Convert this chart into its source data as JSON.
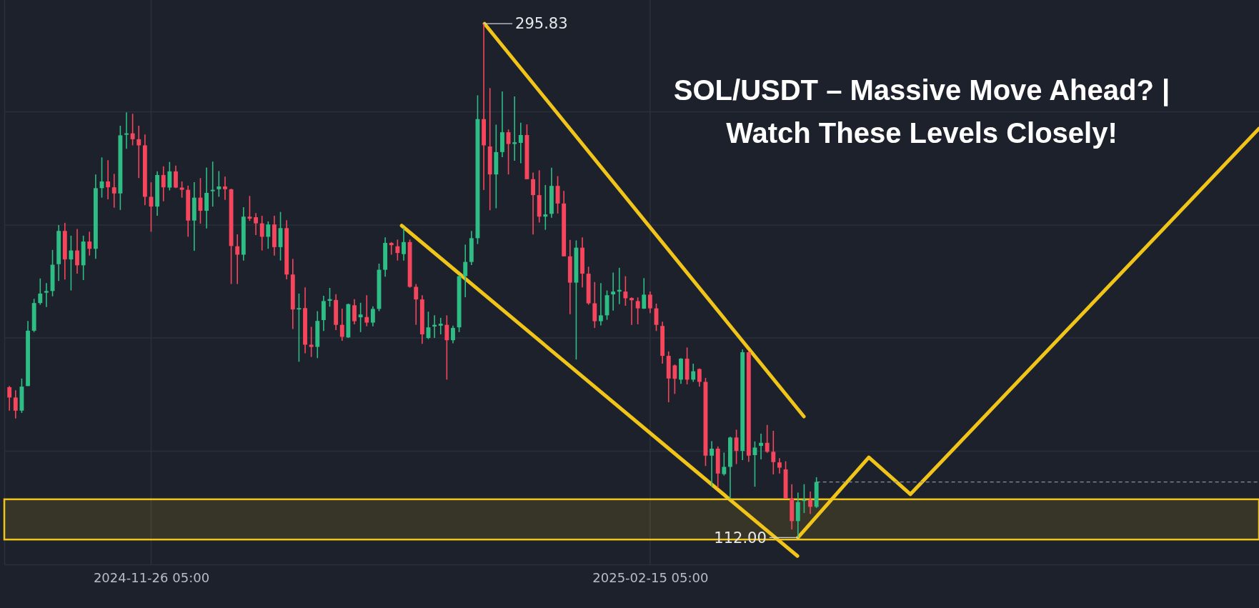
{
  "chart_data": {
    "type": "candlestick",
    "title": "SOL/USDT – Massive Move Ahead? | Watch These Levels Closely!",
    "x": [
      "2024-11-03T05:00",
      "2024-11-04T05:00",
      "2024-11-05T05:00",
      "2024-11-06T05:00",
      "2024-11-07T05:00",
      "2024-11-08T05:00",
      "2024-11-09T05:00",
      "2024-11-10T05:00",
      "2024-11-11T05:00",
      "2024-11-12T05:00",
      "2024-11-13T05:00",
      "2024-11-14T05:00",
      "2024-11-15T05:00",
      "2024-11-16T05:00",
      "2024-11-17T05:00",
      "2024-11-18T05:00",
      "2024-11-19T05:00",
      "2024-11-20T05:00",
      "2024-11-21T05:00",
      "2024-11-22T05:00",
      "2024-11-23T05:00",
      "2024-11-24T05:00",
      "2024-11-25T05:00",
      "2024-11-26T05:00",
      "2024-11-27T05:00",
      "2024-11-28T05:00",
      "2024-11-29T05:00",
      "2024-11-30T05:00",
      "2024-12-01T05:00",
      "2024-12-02T05:00",
      "2024-12-03T05:00",
      "2024-12-04T05:00",
      "2024-12-05T05:00",
      "2024-12-06T05:00",
      "2024-12-07T05:00",
      "2024-12-08T05:00",
      "2024-12-09T05:00",
      "2024-12-10T05:00",
      "2024-12-11T05:00",
      "2024-12-12T05:00",
      "2024-12-13T05:00",
      "2024-12-14T05:00",
      "2024-12-15T05:00",
      "2024-12-16T05:00",
      "2024-12-17T05:00",
      "2024-12-18T05:00",
      "2024-12-19T05:00",
      "2024-12-20T05:00",
      "2024-12-21T05:00",
      "2024-12-22T05:00",
      "2024-12-23T05:00",
      "2024-12-24T05:00",
      "2024-12-25T05:00",
      "2024-12-26T05:00",
      "2024-12-27T05:00",
      "2024-12-28T05:00",
      "2024-12-29T05:00",
      "2024-12-30T05:00",
      "2024-12-31T05:00",
      "2025-01-01T05:00",
      "2025-01-02T05:00",
      "2025-01-03T05:00",
      "2025-01-04T05:00",
      "2025-01-05T05:00",
      "2025-01-06T05:00",
      "2025-01-07T05:00",
      "2025-01-08T05:00",
      "2025-01-09T05:00",
      "2025-01-10T05:00",
      "2025-01-11T05:00",
      "2025-01-12T05:00",
      "2025-01-13T05:00",
      "2025-01-14T05:00",
      "2025-01-15T05:00",
      "2025-01-16T05:00",
      "2025-01-17T05:00",
      "2025-01-18T05:00",
      "2025-01-19T05:00",
      "2025-01-20T05:00",
      "2025-01-21T05:00",
      "2025-01-22T05:00",
      "2025-01-23T05:00",
      "2025-01-24T05:00",
      "2025-01-25T05:00",
      "2025-01-26T05:00",
      "2025-01-27T05:00",
      "2025-01-28T05:00",
      "2025-01-29T05:00",
      "2025-01-30T05:00",
      "2025-01-31T05:00",
      "2025-02-01T05:00",
      "2025-02-02T05:00",
      "2025-02-03T05:00",
      "2025-02-04T05:00",
      "2025-02-05T05:00",
      "2025-02-06T05:00",
      "2025-02-07T05:00",
      "2025-02-08T05:00",
      "2025-02-09T05:00",
      "2025-02-10T05:00",
      "2025-02-11T05:00",
      "2025-02-12T05:00",
      "2025-02-13T05:00",
      "2025-02-14T05:00",
      "2025-02-15T05:00",
      "2025-02-16T05:00",
      "2025-02-17T05:00",
      "2025-02-18T05:00",
      "2025-02-19T05:00",
      "2025-02-20T05:00",
      "2025-02-21T05:00",
      "2025-02-22T05:00",
      "2025-02-23T05:00",
      "2025-02-24T05:00",
      "2025-02-25T05:00",
      "2025-02-26T05:00",
      "2025-02-27T05:00",
      "2025-02-28T05:00",
      "2025-03-01T05:00",
      "2025-03-02T05:00",
      "2025-03-03T05:00",
      "2025-03-04T05:00",
      "2025-03-05T05:00",
      "2025-03-06T05:00",
      "2025-03-07T05:00",
      "2025-03-08T05:00",
      "2025-03-09T05:00",
      "2025-03-10T05:00",
      "2025-03-11T05:00",
      "2025-03-12T05:00",
      "2025-03-13T05:00",
      "2025-03-14T05:00"
    ],
    "ohlc": [
      [
        165.8,
        166.2,
        157.4,
        162.1
      ],
      [
        162.1,
        164.7,
        154.6,
        157.4
      ],
      [
        157.4,
        168.9,
        156.6,
        166.0
      ],
      [
        166.2,
        189.5,
        166.2,
        186.0
      ],
      [
        186.0,
        197.4,
        185.5,
        195.9
      ],
      [
        195.9,
        204.7,
        195.3,
        199.3
      ],
      [
        199.6,
        203.0,
        194.5,
        200.2
      ],
      [
        200.2,
        214.9,
        198.3,
        209.6
      ],
      [
        209.8,
        223.8,
        203.8,
        221.7
      ],
      [
        221.7,
        224.6,
        204.3,
        211.5
      ],
      [
        211.5,
        220.0,
        200.4,
        214.7
      ],
      [
        214.7,
        222.4,
        206.4,
        209.4
      ],
      [
        209.4,
        220.0,
        204.1,
        217.9
      ],
      [
        217.9,
        221.4,
        212.9,
        215.3
      ],
      [
        215.3,
        241.9,
        211.7,
        237.0
      ],
      [
        237.0,
        248.0,
        233.6,
        239.4
      ],
      [
        239.4,
        247.0,
        233.0,
        237.3
      ],
      [
        237.3,
        242.1,
        230.0,
        235.1
      ],
      [
        235.1,
        259.3,
        229.2,
        255.9
      ],
      [
        256.1,
        264.1,
        251.1,
        256.6
      ],
      [
        256.6,
        263.6,
        252.3,
        254.5
      ],
      [
        254.5,
        259.3,
        240.6,
        252.3
      ],
      [
        252.3,
        256.2,
        230.9,
        233.9
      ],
      [
        233.9,
        239.1,
        221.4,
        230.4
      ],
      [
        230.4,
        243.0,
        227.1,
        241.7
      ],
      [
        241.7,
        244.8,
        232.3,
        237.3
      ],
      [
        237.2,
        246.4,
        236.2,
        243.0
      ],
      [
        243.0,
        245.1,
        237.0,
        237.2
      ],
      [
        237.2,
        239.4,
        233.6,
        236.4
      ],
      [
        236.4,
        237.9,
        219.6,
        225.4
      ],
      [
        225.4,
        239.1,
        214.6,
        233.6
      ],
      [
        233.6,
        240.6,
        224.3,
        228.9
      ],
      [
        228.9,
        244.4,
        222.6,
        235.3
      ],
      [
        235.9,
        246.5,
        230.4,
        236.4
      ],
      [
        236.6,
        243.1,
        233.9,
        237.6
      ],
      [
        237.6,
        241.1,
        232.8,
        236.6
      ],
      [
        236.6,
        236.8,
        202.7,
        216.3
      ],
      [
        216.2,
        220.5,
        202.7,
        213.2
      ],
      [
        213.2,
        230.2,
        211.1,
        226.8
      ],
      [
        226.8,
        234.2,
        225.3,
        226.1
      ],
      [
        226.6,
        228.1,
        220.2,
        224.4
      ],
      [
        224.4,
        227.1,
        214.7,
        219.6
      ],
      [
        219.6,
        225.1,
        215.3,
        224.0
      ],
      [
        224.0,
        227.1,
        212.9,
        215.9
      ],
      [
        215.9,
        228.5,
        211.1,
        222.7
      ],
      [
        222.7,
        225.5,
        204.4,
        206.1
      ],
      [
        206.1,
        211.7,
        186.6,
        193.6
      ],
      [
        193.6,
        199.3,
        174.9,
        194.1
      ],
      [
        194.1,
        201.5,
        177.9,
        181.0
      ],
      [
        181.0,
        187.4,
        176.6,
        180.2
      ],
      [
        180.2,
        193.0,
        176.2,
        189.5
      ],
      [
        189.8,
        198.5,
        185.9,
        196.6
      ],
      [
        196.7,
        201.3,
        194.6,
        197.3
      ],
      [
        197.0,
        199.1,
        186.2,
        188.1
      ],
      [
        188.1,
        193.9,
        182.4,
        183.8
      ],
      [
        183.6,
        195.7,
        183.4,
        195.5
      ],
      [
        195.1,
        197.3,
        188.3,
        189.4
      ],
      [
        190.8,
        196.0,
        185.5,
        191.8
      ],
      [
        190.9,
        198.7,
        187.6,
        188.9
      ],
      [
        188.9,
        194.7,
        187.6,
        193.8
      ],
      [
        193.8,
        210.0,
        193.0,
        207.8
      ],
      [
        207.8,
        219.4,
        205.3,
        217.4
      ],
      [
        217.4,
        217.7,
        213.2,
        216.6
      ],
      [
        216.2,
        218.6,
        211.1,
        213.8
      ],
      [
        213.4,
        222.8,
        211.1,
        217.7
      ],
      [
        217.7,
        218.6,
        201.4,
        201.7
      ],
      [
        201.7,
        202.7,
        188.1,
        197.2
      ],
      [
        197.2,
        198.7,
        181.3,
        184.7
      ],
      [
        183.4,
        192.8,
        183.0,
        187.2
      ],
      [
        187.5,
        191.5,
        183.4,
        188.1
      ],
      [
        187.8,
        190.6,
        184.7,
        188.5
      ],
      [
        188.1,
        191.5,
        168.5,
        182.6
      ],
      [
        182.6,
        187.8,
        181.5,
        187.0
      ],
      [
        187.2,
        205.9,
        185.5,
        205.5
      ],
      [
        205.5,
        216.8,
        198.0,
        210.6
      ],
      [
        210.6,
        221.7,
        209.5,
        219.1
      ],
      [
        219.1,
        270.2,
        217.0,
        261.7
      ],
      [
        261.7,
        295.83,
        236.3,
        252.3
      ],
      [
        251.9,
        272.8,
        229.1,
        241.9
      ],
      [
        241.9,
        259.7,
        229.8,
        249.9
      ],
      [
        249.9,
        271.6,
        248.1,
        257.0
      ],
      [
        257.0,
        258.0,
        241.9,
        252.8
      ],
      [
        252.8,
        269.8,
        246.8,
        253.4
      ],
      [
        253.2,
        260.4,
        245.9,
        256.0
      ],
      [
        256.0,
        259.8,
        240.2,
        240.2
      ],
      [
        240.2,
        242.6,
        220.4,
        234.5
      ],
      [
        234.5,
        243.4,
        224.7,
        226.8
      ],
      [
        226.8,
        238.1,
        222.1,
        227.6
      ],
      [
        227.8,
        244.3,
        226.4,
        237.8
      ],
      [
        237.8,
        241.3,
        227.9,
        231.5
      ],
      [
        231.5,
        236.0,
        212.6,
        212.6
      ],
      [
        212.6,
        218.5,
        191.9,
        203.2
      ],
      [
        203.2,
        218.3,
        175.7,
        215.7
      ],
      [
        215.7,
        219.4,
        201.5,
        206.4
      ],
      [
        206.4,
        208.9,
        195.3,
        195.8
      ],
      [
        195.8,
        203.4,
        187.0,
        189.4
      ],
      [
        189.4,
        203.0,
        187.9,
        191.5
      ],
      [
        191.5,
        200.4,
        189.9,
        198.7
      ],
      [
        199.0,
        206.8,
        193.2,
        200.0
      ],
      [
        200.0,
        208.5,
        195.5,
        200.6
      ],
      [
        200.0,
        205.5,
        194.9,
        197.6
      ],
      [
        197.7,
        197.9,
        188.1,
        196.9
      ],
      [
        196.6,
        197.9,
        188.3,
        194.0
      ],
      [
        193.9,
        204.8,
        193.8,
        198.9
      ],
      [
        198.9,
        200.0,
        192.3,
        194.0
      ],
      [
        194.0,
        195.7,
        185.9,
        188.1
      ],
      [
        187.7,
        189.2,
        174.2,
        177.0
      ],
      [
        177.0,
        178.6,
        160.4,
        168.9
      ],
      [
        173.6,
        173.9,
        163.4,
        168.8
      ],
      [
        168.5,
        176.2,
        167.0,
        176.0
      ],
      [
        176.0,
        180.0,
        166.8,
        168.5
      ],
      [
        168.5,
        174.2,
        167.7,
        171.5
      ],
      [
        172.3,
        172.5,
        166.0,
        167.7
      ],
      [
        167.7,
        169.1,
        137.6,
        141.3
      ],
      [
        141.3,
        146.5,
        130.2,
        143.8
      ],
      [
        143.8,
        144.6,
        129.8,
        134.9
      ],
      [
        134.7,
        142.4,
        134.2,
        137.3
      ],
      [
        137.3,
        148.1,
        125.9,
        147.8
      ],
      [
        147.8,
        150.6,
        138.3,
        143.0
      ],
      [
        143.0,
        179.3,
        139.7,
        178.3
      ],
      [
        178.3,
        178.6,
        139.1,
        141.3
      ],
      [
        141.5,
        146.4,
        130.2,
        144.2
      ],
      [
        144.8,
        149.2,
        140.0,
        145.9
      ],
      [
        145.9,
        152.3,
        142.3,
        142.7
      ],
      [
        142.7,
        150.2,
        134.6,
        139.0
      ],
      [
        138.9,
        140.4,
        134.9,
        137.0
      ],
      [
        136.4,
        139.3,
        126.0,
        126.0
      ],
      [
        126.0,
        131.1,
        114.9,
        117.9
      ],
      [
        117.9,
        128.1,
        112.0,
        124.7
      ],
      [
        125.1,
        131.1,
        120.8,
        125.5
      ],
      [
        125.5,
        128.5,
        120.4,
        123.0
      ],
      [
        123.0,
        133.6,
        122.6,
        131.9
      ]
    ],
    "series": [
      {
        "type": "line",
        "color": "#f0c419",
        "x": [
          "2025-01-05T21:00",
          "2025-03-11T03:00"
        ],
        "values": [
          223.6,
          105.4
        ]
      },
      {
        "type": "line",
        "color": "#f0c419",
        "x": [
          "2025-01-19T08:00",
          "2025-03-12T04:00"
        ],
        "values": [
          295.8,
          155.3
        ]
      },
      {
        "type": "line",
        "color": "#f0c419",
        "x": [
          "2025-03-11T05:00",
          "2025-03-22T17:00",
          "2025-03-29T11:00",
          "2025-05-25T01:00"
        ],
        "values": [
          112.0,
          140.7,
          127.5,
          258.3
        ]
      }
    ],
    "xlim": [
      "2024-11-02T09:00",
      "2025-05-25T01:00"
    ],
    "xticks": [
      {
        "value": "2024-11-26T05:00",
        "label": "2024-11-26 05:00"
      },
      {
        "value": "2025-02-15T05:00",
        "label": "2025-02-15 05:00"
      }
    ],
    "ylim": [
      102.4,
      304.3
    ],
    "yticks": [
      {
        "value": 142.9,
        "label": null
      },
      {
        "value": 183.4,
        "label": null
      },
      {
        "value": 223.8,
        "label": null
      },
      {
        "value": 264.3,
        "label": null
      }
    ],
    "grid": true,
    "tick_labels": "x",
    "bands": [
      {
        "axis": "y",
        "from": 111.3,
        "to": 125.7,
        "color": "#f0c419"
      }
    ],
    "ref_lines": [
      {
        "axis": "y",
        "value": 131.9,
        "color": "#8a8f98",
        "line_style": "dashed"
      }
    ],
    "annotations": [
      {
        "text": "295.83",
        "x": "2025-01-19T05:00",
        "y": 295.83
      },
      {
        "text": "112.00",
        "x": "2025-03-11T05:00",
        "y": 112.0
      }
    ]
  }
}
